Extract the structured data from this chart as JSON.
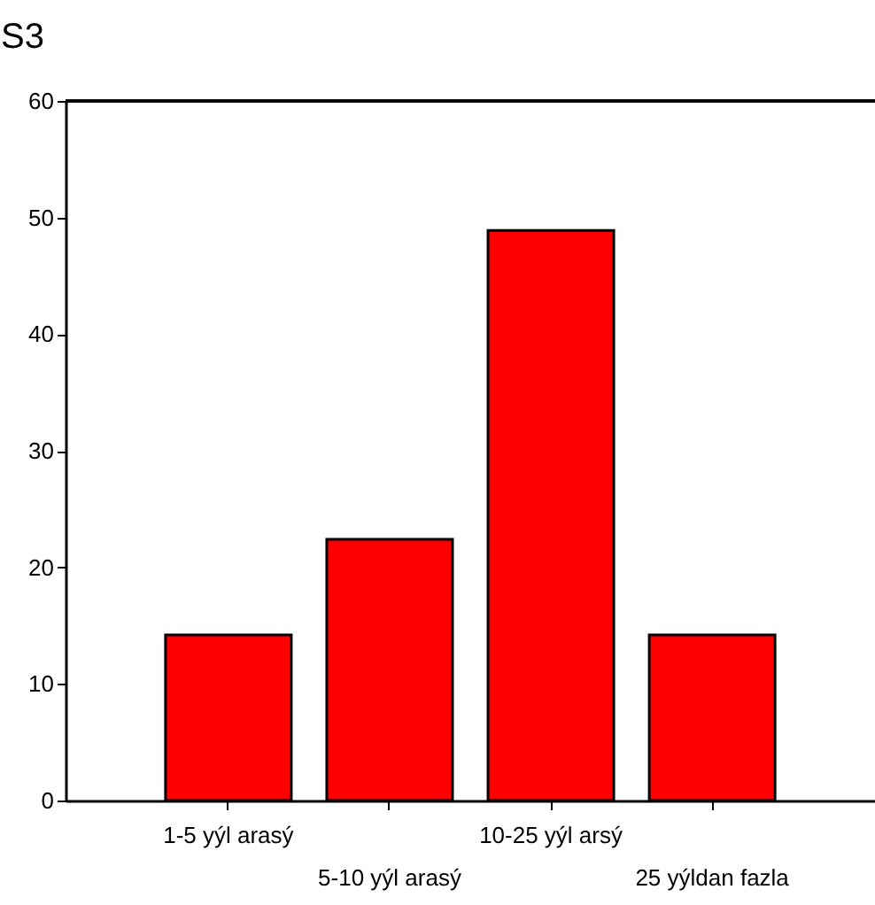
{
  "chart_data": {
    "type": "bar",
    "title": "S3",
    "categories": [
      "1-5 yýl arasý",
      "5-10 yýl arasý",
      "10-25 yýl arsý",
      "25 yýldan fazla"
    ],
    "values": [
      14.2,
      22.4,
      48.9,
      14.2
    ],
    "color": "#ff0000",
    "ylim": [
      0,
      60
    ],
    "yticks": [
      0,
      10,
      20,
      30,
      40,
      50,
      60
    ],
    "grid": false
  }
}
